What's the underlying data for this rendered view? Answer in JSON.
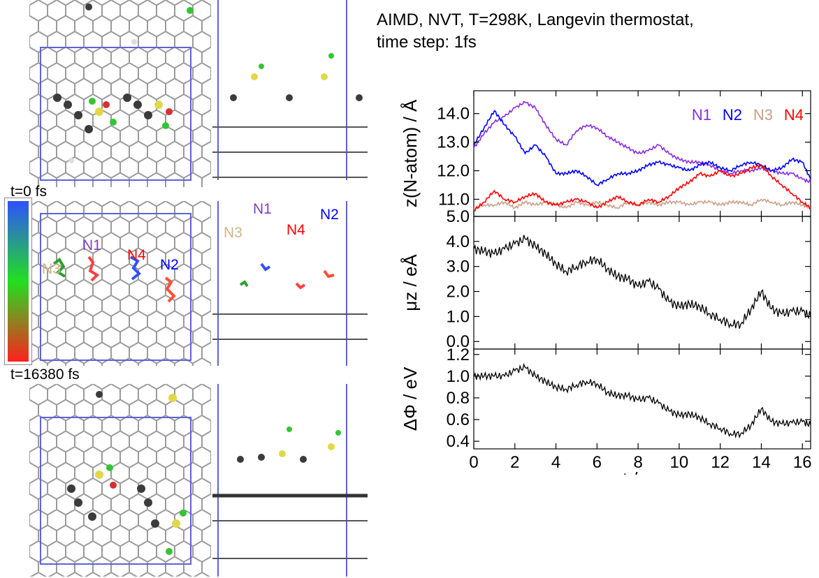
{
  "title": {
    "line1": "AIMD, NVT, T=298K, Langevin thermostat,",
    "line2": "time step: 1fs"
  },
  "colorbar": {
    "top_label": "t=0 fs",
    "bottom_label": "t=16380 fs",
    "colors": [
      "#3050ff",
      "#20e020",
      "#ff2020"
    ]
  },
  "snapshots": {
    "middle_labels": [
      {
        "text": "N1",
        "color": "#7f3fbf"
      },
      {
        "text": "N4",
        "color": "#ff0000"
      },
      {
        "text": "N2",
        "color": "#0000ff"
      },
      {
        "text": "N3",
        "color": "#d2b48c"
      }
    ],
    "side_labels": [
      {
        "text": "N3",
        "color": "#d2b48c"
      },
      {
        "text": "N1",
        "color": "#7f3fbf"
      },
      {
        "text": "N4",
        "color": "#ff0000"
      },
      {
        "text": "N2",
        "color": "#0000ff"
      }
    ]
  },
  "chart_data": [
    {
      "type": "line",
      "ylabel": "z(N-atom) / Å",
      "xlim": [
        0,
        16.4
      ],
      "ylim": [
        10.4,
        14.8
      ],
      "yticks": [
        "11.0",
        "12.0",
        "13.0",
        "14.0"
      ],
      "legend": "top-right",
      "series": [
        {
          "name": "N1",
          "color": "#8a2be2",
          "x": [
            0,
            0.5,
            1,
            1.5,
            2,
            2.5,
            3,
            3.5,
            4,
            4.5,
            5,
            5.5,
            6,
            6.5,
            7,
            7.5,
            8,
            8.5,
            9,
            9.5,
            10,
            10.5,
            11,
            11.5,
            12,
            12.5,
            13,
            13.5,
            14,
            14.5,
            15,
            15.5,
            16,
            16.4
          ],
          "y": [
            12.8,
            13.3,
            13.7,
            13.9,
            14.2,
            14.4,
            14.2,
            13.6,
            13.1,
            12.9,
            13.4,
            13.6,
            13.5,
            13.2,
            13.0,
            12.8,
            12.6,
            12.7,
            12.9,
            12.6,
            12.4,
            12.3,
            12.3,
            12.2,
            12.0,
            11.9,
            12.0,
            12.0,
            12.1,
            12.0,
            11.9,
            11.9,
            11.7,
            11.6
          ]
        },
        {
          "name": "N2",
          "color": "#0000ff",
          "x": [
            0,
            0.5,
            1,
            1.5,
            2,
            2.5,
            3,
            3.5,
            4,
            4.5,
            5,
            5.5,
            6,
            6.5,
            7,
            7.5,
            8,
            8.5,
            9,
            9.5,
            10,
            10.5,
            11,
            11.5,
            12,
            12.5,
            13,
            13.5,
            14,
            14.5,
            15,
            15.5,
            16,
            16.4
          ],
          "y": [
            12.9,
            13.5,
            14.1,
            13.6,
            13.2,
            12.6,
            12.9,
            12.5,
            11.9,
            11.9,
            12.0,
            11.8,
            11.5,
            11.7,
            11.9,
            11.9,
            12.0,
            12.2,
            12.3,
            12.2,
            12.1,
            12.0,
            12.2,
            12.3,
            12.1,
            12.0,
            12.2,
            12.3,
            12.2,
            12.0,
            12.1,
            12.4,
            12.3,
            11.7
          ]
        },
        {
          "name": "N3",
          "color": "#c8a08a",
          "x": [
            0,
            0.5,
            1,
            1.5,
            2,
            2.5,
            3,
            3.5,
            4,
            4.5,
            5,
            5.5,
            6,
            6.5,
            7,
            7.5,
            8,
            8.5,
            9,
            9.5,
            10,
            10.5,
            11,
            11.5,
            12,
            12.5,
            13,
            13.5,
            14,
            14.5,
            15,
            15.5,
            16,
            16.4
          ],
          "y": [
            10.7,
            10.8,
            10.8,
            10.9,
            10.7,
            10.9,
            10.8,
            10.9,
            10.8,
            10.7,
            10.9,
            10.8,
            10.9,
            10.8,
            10.7,
            10.9,
            10.8,
            10.9,
            10.8,
            10.9,
            10.9,
            10.8,
            10.9,
            10.9,
            10.8,
            10.9,
            10.9,
            10.8,
            11.0,
            10.9,
            10.8,
            10.9,
            10.8,
            10.7
          ]
        },
        {
          "name": "N4",
          "color": "#ff0000",
          "x": [
            0,
            0.5,
            1,
            1.5,
            2,
            2.5,
            3,
            3.5,
            4,
            4.5,
            5,
            5.5,
            6,
            6.5,
            7,
            7.5,
            8,
            8.5,
            9,
            9.5,
            10,
            10.5,
            11,
            11.5,
            12,
            12.5,
            13,
            13.5,
            14,
            14.5,
            15,
            15.5,
            16,
            16.4
          ],
          "y": [
            10.6,
            10.9,
            11.3,
            11.0,
            10.9,
            11.1,
            11.2,
            10.9,
            10.8,
            10.9,
            11.0,
            10.9,
            10.7,
            10.9,
            11.1,
            10.9,
            10.8,
            11.0,
            10.9,
            11.1,
            11.4,
            11.6,
            11.9,
            11.8,
            12.0,
            11.8,
            11.9,
            12.1,
            12.2,
            11.8,
            11.5,
            11.2,
            10.9,
            10.7
          ]
        }
      ]
    },
    {
      "type": "line",
      "ylabel": "μz / eÅ",
      "xlim": [
        0,
        16.4
      ],
      "ylim": [
        -0.3,
        5.0
      ],
      "yticks": [
        "0.0",
        "1.0",
        "2.0",
        "3.0",
        "4.0",
        "5.0"
      ],
      "series": [
        {
          "name": "",
          "color": "#000000",
          "x": [
            0,
            0.5,
            1,
            1.5,
            2,
            2.5,
            3,
            3.5,
            4,
            4.5,
            5,
            5.5,
            6,
            6.5,
            7,
            7.5,
            8,
            8.5,
            9,
            9.5,
            10,
            10.5,
            11,
            11.5,
            12,
            12.5,
            13,
            13.5,
            14,
            14.5,
            15,
            15.5,
            16,
            16.4
          ],
          "y": [
            3.7,
            3.6,
            3.5,
            3.7,
            3.9,
            4.1,
            3.8,
            3.5,
            3.1,
            2.8,
            3.0,
            3.2,
            3.3,
            2.9,
            2.6,
            2.5,
            2.2,
            2.4,
            2.1,
            1.6,
            1.4,
            1.5,
            1.4,
            1.1,
            0.9,
            0.7,
            0.7,
            1.3,
            2.0,
            1.3,
            1.1,
            1.2,
            1.2,
            1.0
          ]
        }
      ]
    },
    {
      "type": "line",
      "ylabel": "ΔΦ / eV",
      "xlabel": "t / ps",
      "xlim": [
        0,
        16.4
      ],
      "ylim": [
        0.33,
        1.25
      ],
      "xticks": [
        "0",
        "2",
        "4",
        "6",
        "8",
        "10",
        "12",
        "14",
        "16"
      ],
      "yticks": [
        "0.4",
        "0.6",
        "0.8",
        "1.0",
        "1.2"
      ],
      "series": [
        {
          "name": "",
          "color": "#000000",
          "x": [
            0,
            0.5,
            1,
            1.5,
            2,
            2.5,
            3,
            3.5,
            4,
            4.5,
            5,
            5.5,
            6,
            6.5,
            7,
            7.5,
            8,
            8.5,
            9,
            9.5,
            10,
            10.5,
            11,
            11.5,
            12,
            12.5,
            13,
            13.5,
            14,
            14.5,
            15,
            15.5,
            16,
            16.4
          ],
          "y": [
            1.0,
            1.0,
            1.0,
            1.0,
            1.05,
            1.08,
            1.0,
            0.95,
            0.9,
            0.88,
            0.92,
            0.95,
            0.93,
            0.85,
            0.82,
            0.82,
            0.78,
            0.8,
            0.75,
            0.68,
            0.64,
            0.65,
            0.62,
            0.56,
            0.52,
            0.47,
            0.47,
            0.55,
            0.7,
            0.58,
            0.56,
            0.57,
            0.58,
            0.55
          ]
        }
      ]
    }
  ]
}
